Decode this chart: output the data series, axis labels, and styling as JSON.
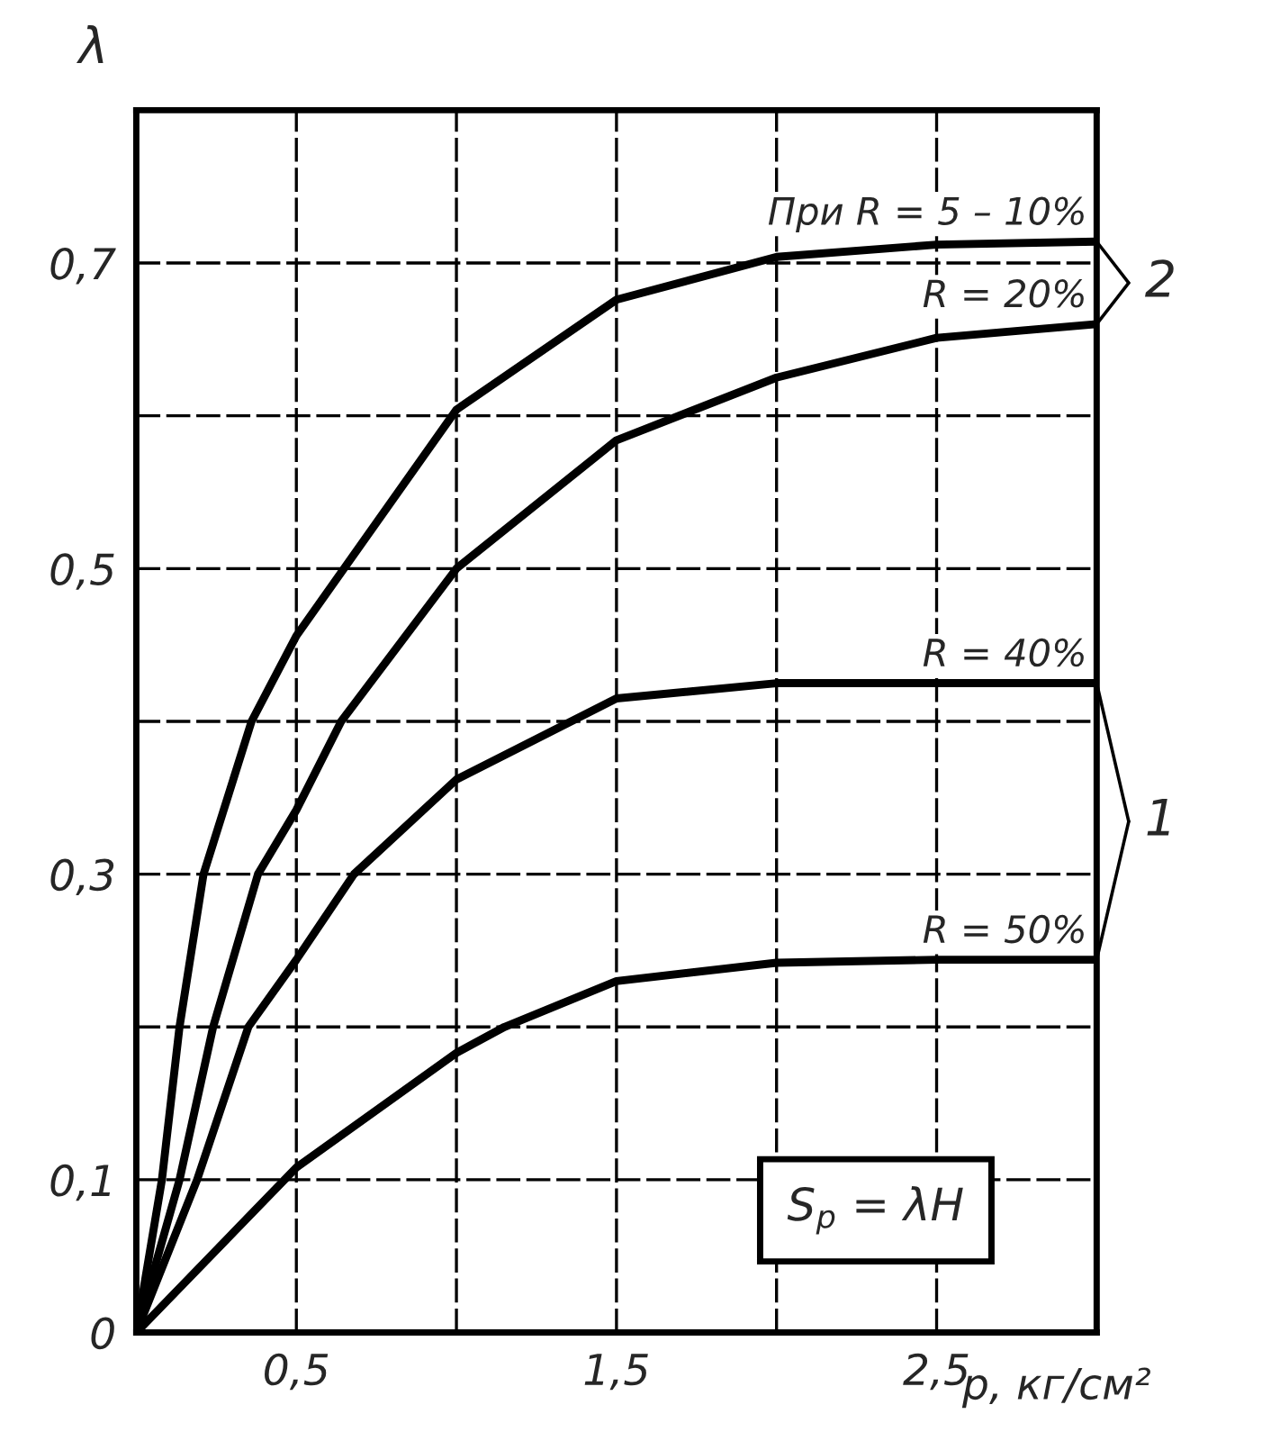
{
  "chart_data": {
    "type": "line",
    "xlabel": "p, кг/см²",
    "ylabel": "λ",
    "xlim": [
      0,
      3.0
    ],
    "ylim": [
      0,
      0.8
    ],
    "xticks": [
      {
        "value": 0.5,
        "label": "0,5"
      },
      {
        "value": 1.0,
        "label": null
      },
      {
        "value": 1.5,
        "label": "1,5"
      },
      {
        "value": 2.0,
        "label": null
      },
      {
        "value": 2.5,
        "label": "2,5"
      },
      {
        "value": 3.0,
        "label": null
      }
    ],
    "yticks": [
      {
        "value": 0,
        "label": "0"
      },
      {
        "value": 0.1,
        "label": "0,1"
      },
      {
        "value": 0.2,
        "label": null
      },
      {
        "value": 0.3,
        "label": "0,3"
      },
      {
        "value": 0.4,
        "label": null
      },
      {
        "value": 0.5,
        "label": "0,5"
      },
      {
        "value": 0.6,
        "label": null
      },
      {
        "value": 0.7,
        "label": "0,7"
      }
    ],
    "grid": true,
    "marker": "none",
    "line_style": "solid",
    "series": [
      {
        "name": "При R = 5 – 10%",
        "color": "#000000",
        "x": [
          0,
          0.08,
          0.135,
          0.21,
          0.36,
          0.5,
          1.0,
          1.5,
          2.0,
          2.5,
          3.0
        ],
        "values": [
          0,
          0.1,
          0.2,
          0.3,
          0.4,
          0.456,
          0.604,
          0.676,
          0.704,
          0.712,
          0.714
        ]
      },
      {
        "name": "R = 20%",
        "color": "#000000",
        "x": [
          0,
          0.135,
          0.24,
          0.38,
          0.5,
          0.64,
          1.0,
          1.5,
          2.0,
          2.5,
          3.0
        ],
        "values": [
          0,
          0.1,
          0.2,
          0.3,
          0.342,
          0.4,
          0.5,
          0.584,
          0.625,
          0.651,
          0.66
        ]
      },
      {
        "name": "R = 40%",
        "color": "#000000",
        "x": [
          0,
          0.19,
          0.35,
          0.5,
          0.68,
          1.0,
          1.5,
          2.0,
          2.5,
          3.0
        ],
        "values": [
          0,
          0.1,
          0.2,
          0.244,
          0.3,
          0.362,
          0.415,
          0.425,
          0.425,
          0.425
        ]
      },
      {
        "name": "R = 50%",
        "color": "#000000",
        "x": [
          0,
          0.5,
          1.0,
          1.15,
          1.5,
          2.0,
          2.5,
          3.0
        ],
        "values": [
          0,
          0.108,
          0.183,
          0.2,
          0.23,
          0.242,
          0.244,
          0.244
        ]
      }
    ],
    "annotations": [
      {
        "text": "2",
        "x": 3.0,
        "y": 0.714
      },
      {
        "text": "1",
        "x": 3.0,
        "y": 0.425
      },
      "S$_{p}$ = λH"
    ]
  }
}
